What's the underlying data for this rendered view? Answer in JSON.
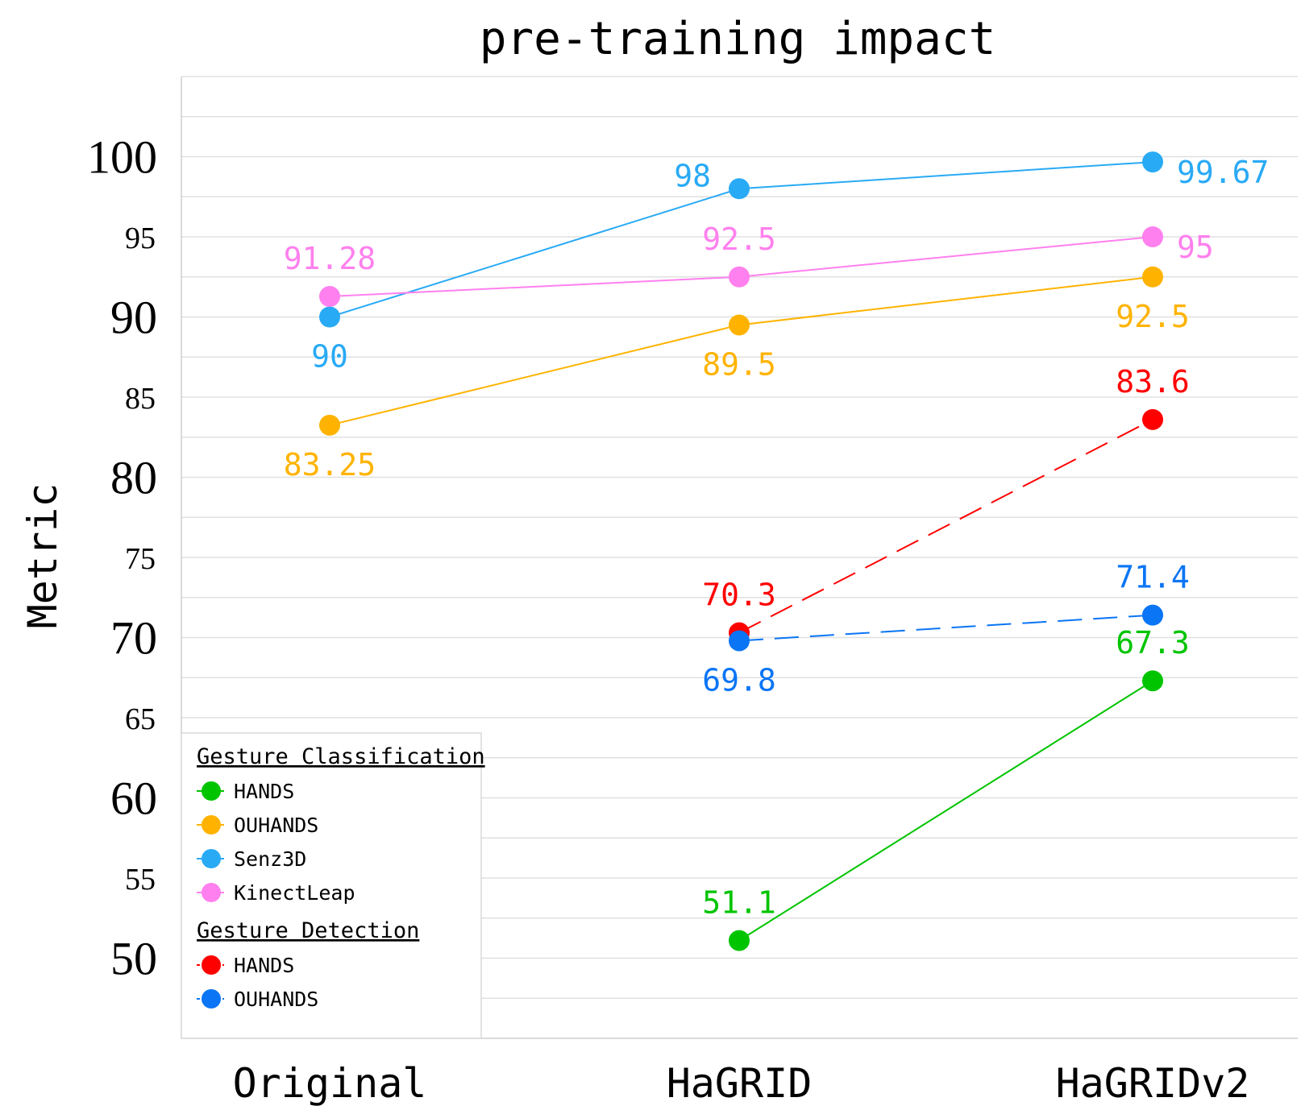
{
  "chart_data": {
    "type": "line",
    "title": "pre-training impact",
    "xlabel": "",
    "ylabel": "Metric",
    "categories": [
      "Original",
      "HaGRID",
      "HaGRIDv2"
    ],
    "ylim": [
      45,
      105
    ],
    "yticks_major": [
      "50",
      "60",
      "70",
      "80",
      "90",
      "100"
    ],
    "yticks_minor": [
      "55",
      "65",
      "75",
      "85",
      "95"
    ],
    "grid": true,
    "legend_position": "bottom-left",
    "legend_groups": [
      {
        "title": "Gesture Classification",
        "series_names": [
          "HANDS",
          "OUHANDS",
          "Senz3D",
          "KinectLeap"
        ]
      },
      {
        "title": "Gesture Detection",
        "series_names": [
          "HANDS",
          "OUHANDS"
        ]
      }
    ],
    "series": [
      {
        "name": "HANDS",
        "group": "Gesture Classification",
        "color": "#00c400",
        "dashed": false,
        "values": [
          null,
          51.1,
          67.3
        ],
        "labels": [
          "",
          "51.1",
          "67.3"
        ],
        "label_pos": [
          "",
          "above",
          "above"
        ]
      },
      {
        "name": "OUHANDS",
        "group": "Gesture Classification",
        "color": "#ffb300",
        "dashed": false,
        "values": [
          83.25,
          89.5,
          92.5
        ],
        "labels": [
          "83.25",
          "89.5",
          "92.5"
        ],
        "label_pos": [
          "below",
          "below",
          "below"
        ]
      },
      {
        "name": "Senz3D",
        "group": "Gesture Classification",
        "color": "#29aaf5",
        "dashed": false,
        "values": [
          90,
          98,
          99.67
        ],
        "labels": [
          "90",
          "98",
          "99.67"
        ],
        "label_pos": [
          "below",
          "left",
          "right"
        ]
      },
      {
        "name": "KinectLeap",
        "group": "Gesture Classification",
        "color": "#ff80ee",
        "dashed": false,
        "values": [
          91.28,
          92.5,
          95
        ],
        "labels": [
          "91.28",
          "92.5",
          "95"
        ],
        "label_pos": [
          "above",
          "above",
          "right"
        ]
      },
      {
        "name": "HANDS",
        "group": "Gesture Detection",
        "color": "#ff0000",
        "dashed": true,
        "values": [
          null,
          70.3,
          83.6
        ],
        "labels": [
          "",
          "70.3",
          "83.6"
        ],
        "label_pos": [
          "",
          "above",
          "above"
        ]
      },
      {
        "name": "OUHANDS",
        "group": "Gesture Detection",
        "color": "#0a75f5",
        "dashed": true,
        "values": [
          null,
          69.8,
          71.4
        ],
        "labels": [
          "",
          "69.8",
          "71.4"
        ],
        "label_pos": [
          "",
          "below",
          "above"
        ]
      }
    ]
  }
}
